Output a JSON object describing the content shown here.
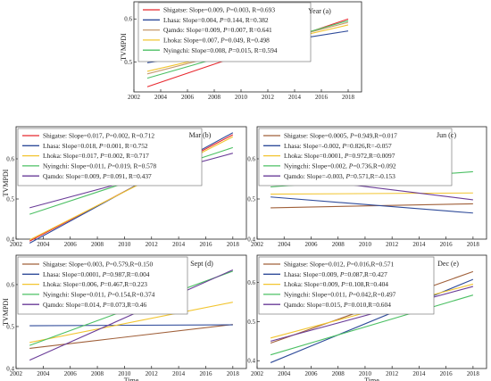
{
  "colors": {
    "Shigatse": "#e8292f",
    "Lhasa": "#2f4b9a",
    "Qamdo": "#c69a6e",
    "Lhoka": "#f2c530",
    "Nyingchi": "#4cc064",
    "Qamdo_purple": "#6a3c98",
    "Shigatse_brown": "#a0603a"
  },
  "chart_data": [
    {
      "type": "line",
      "title": "Year (a)",
      "ylabel": "TVMPDI",
      "xlabel": "",
      "xticks": [
        "2002",
        "2004",
        "2006",
        "2008",
        "2010",
        "2012",
        "2014",
        "2016",
        "2018"
      ],
      "yticks": [
        "0.5",
        "0.6"
      ],
      "xlim": [
        2002,
        2019
      ],
      "ylim": [
        0.43,
        0.64
      ],
      "legend": "top-left",
      "series": [
        {
          "name": "Shigatse",
          "label": [
            "Shigatse: Slope=0.009, ",
            "P",
            "=0.003, R=0.693"
          ],
          "color_key": "Shigatse",
          "x": [
            2003,
            2018
          ],
          "y": [
            0.442,
            0.6
          ]
        },
        {
          "name": "Lhasa",
          "label": [
            "Lhasa: Slope=0.004, ",
            "P",
            "=0.144, R=0.382"
          ],
          "color_key": "Lhasa",
          "x": [
            2003,
            2018
          ],
          "y": [
            0.498,
            0.572
          ]
        },
        {
          "name": "Qamdo",
          "label": [
            "Qamdo: Slope=0.009, ",
            "P",
            "=0.007, R=0.641"
          ],
          "color_key": "Qamdo",
          "x": [
            2003,
            2018
          ],
          "y": [
            0.472,
            0.592
          ]
        },
        {
          "name": "Lhoka",
          "label": [
            "Lhoka: Slope=0.007, ",
            "P",
            "=0.049, R=0.498"
          ],
          "color_key": "Lhoka",
          "x": [
            2003,
            2018
          ],
          "y": [
            0.478,
            0.586
          ]
        },
        {
          "name": "Nyingchi",
          "label": [
            "Nyingchi: Slope=0.008, ",
            "P",
            "=0.015, R=0.594"
          ],
          "color_key": "Nyingchi",
          "x": [
            2003,
            2018
          ],
          "y": [
            0.462,
            0.596
          ]
        }
      ]
    },
    {
      "type": "line",
      "title": "Mar (b)",
      "ylabel": "TVMPDI",
      "xlabel": "",
      "xticks": [
        "2002",
        "2004",
        "2006",
        "2008",
        "2010",
        "2012",
        "2014",
        "2016",
        "2018"
      ],
      "yticks": [
        "0.4",
        "0.5",
        "0.6"
      ],
      "xlim": [
        2002,
        2019
      ],
      "ylim": [
        0.4,
        0.68
      ],
      "legend": "top-left",
      "series": [
        {
          "name": "Shigatse",
          "label": [
            "Shigatse: Slope=0.017, ",
            "P",
            "=0.002, R=0.712"
          ],
          "color_key": "Shigatse",
          "x": [
            2003,
            2018
          ],
          "y": [
            0.395,
            0.66
          ]
        },
        {
          "name": "Lhasa",
          "label": [
            "Lhasa: Slope=0.018, ",
            "P",
            "=0.001, R=0.752"
          ],
          "color_key": "Lhasa",
          "x": [
            2003,
            2018
          ],
          "y": [
            0.39,
            0.665
          ]
        },
        {
          "name": "Lhoka",
          "label": [
            "Lhoka: Slope=0.017, ",
            "P",
            "=0.002, R=0.717"
          ],
          "color_key": "Lhoka",
          "x": [
            2003,
            2018
          ],
          "y": [
            0.398,
            0.655
          ]
        },
        {
          "name": "Nyingchi",
          "label": [
            "Nyingchi: Slope=0.011, ",
            "P",
            "=0.019, R=0.578"
          ],
          "color_key": "Nyingchi",
          "x": [
            2003,
            2018
          ],
          "y": [
            0.462,
            0.628
          ]
        },
        {
          "name": "Qamdo",
          "label": [
            "Qamdo: Slope=0.009, ",
            "P",
            "=0.091, R=0.437"
          ],
          "color_key": "Qamdo_purple",
          "x": [
            2003,
            2018
          ],
          "y": [
            0.478,
            0.614
          ]
        }
      ]
    },
    {
      "type": "line",
      "title": "Jun (c)",
      "ylabel": "",
      "xlabel": "",
      "xticks": [
        "2002",
        "2004",
        "2006",
        "2008",
        "2010",
        "2012",
        "2014",
        "2016",
        "2018"
      ],
      "yticks": [
        "0.4",
        "0.5",
        "0.6"
      ],
      "xlim": [
        2002,
        2019
      ],
      "ylim": [
        0.4,
        0.68
      ],
      "legend": "top-left",
      "series": [
        {
          "name": "Shigatse",
          "label": [
            "Shigatse: Slope=0.0005, ",
            "P",
            "=0.949,R=0.017"
          ],
          "color_key": "Shigatse_brown",
          "x": [
            2003,
            2018
          ],
          "y": [
            0.478,
            0.488
          ]
        },
        {
          "name": "Lhasa",
          "label": [
            "Lhasa: Slope=-0.002, ",
            "P",
            "=0.826,R=-0.057"
          ],
          "color_key": "Lhasa",
          "x": [
            2003,
            2018
          ],
          "y": [
            0.505,
            0.465
          ]
        },
        {
          "name": "Lhoka",
          "label": [
            "Lhoka: Slope=0.0001, ",
            "P",
            "=0.972,R=0.0097"
          ],
          "color_key": "Lhoka",
          "x": [
            2003,
            2018
          ],
          "y": [
            0.512,
            0.515
          ]
        },
        {
          "name": "Nyingchi",
          "label": [
            "Nyingchi: Slope=0.002, ",
            "P",
            "=0.736,R=0.092"
          ],
          "color_key": "Nyingchi",
          "x": [
            2003,
            2018
          ],
          "y": [
            0.53,
            0.568
          ]
        },
        {
          "name": "Qamdo",
          "label": [
            "Qamdo: Slope=-0.003, ",
            "P",
            "=0.571,R=-0.153"
          ],
          "color_key": "Qamdo_purple",
          "x": [
            2003,
            2018
          ],
          "y": [
            0.56,
            0.498
          ]
        }
      ]
    },
    {
      "type": "line",
      "title": "Sept (d)",
      "ylabel": "TVMPDI",
      "xlabel": "Time",
      "xticks": [
        "2002",
        "2004",
        "2006",
        "2008",
        "2010",
        "2012",
        "2014",
        "2016",
        "2018"
      ],
      "yticks": [
        "0.4",
        "0.5",
        "0.6"
      ],
      "xlim": [
        2002,
        2019
      ],
      "ylim": [
        0.4,
        0.67
      ],
      "legend": "top-left",
      "series": [
        {
          "name": "Shigatse",
          "label": [
            "Shigatse: Slope=0.003, ",
            "P",
            "=0.579,R=0.150"
          ],
          "color_key": "Shigatse_brown",
          "x": [
            2003,
            2018
          ],
          "y": [
            0.448,
            0.505
          ]
        },
        {
          "name": "Lhasa",
          "label": [
            "Lhasa: Slope=0.0001, ",
            "P",
            "=0.987,R=0.004"
          ],
          "color_key": "Lhasa",
          "x": [
            2003,
            2018
          ],
          "y": [
            0.502,
            0.504
          ]
        },
        {
          "name": "Lhoka",
          "label": [
            "Lhoka: Slope=0.006, ",
            "P",
            "=0.467,R=0.223"
          ],
          "color_key": "Lhoka",
          "x": [
            2003,
            2018
          ],
          "y": [
            0.462,
            0.558
          ]
        },
        {
          "name": "Nyingchi",
          "label": [
            "Nyingchi: Slope=0.011, ",
            "P",
            "=0.154,R=0.374"
          ],
          "color_key": "Nyingchi",
          "x": [
            2003,
            2018
          ],
          "y": [
            0.455,
            0.632
          ]
        },
        {
          "name": "Qamdo",
          "label": [
            "Qamdo: Slope=0.014, ",
            "P",
            "=0.073,R=0.46"
          ],
          "color_key": "Qamdo_purple",
          "x": [
            2003,
            2018
          ],
          "y": [
            0.42,
            0.635
          ]
        }
      ]
    },
    {
      "type": "line",
      "title": "Dec (e)",
      "ylabel": "",
      "xlabel": "Time",
      "xticks": [
        "2002",
        "2004",
        "2006",
        "2008",
        "2010",
        "2012",
        "2014",
        "2016",
        "2018"
      ],
      "yticks": [
        "0.4",
        "0.5",
        "0.6"
      ],
      "xlim": [
        2002,
        2019
      ],
      "ylim": [
        0.38,
        0.67
      ],
      "legend": "top-left",
      "series": [
        {
          "name": "Shigatse",
          "label": [
            "Shigatse: Slope=0.012, ",
            "P",
            "=0.016,R=0.571"
          ],
          "color_key": "Shigatse_brown",
          "x": [
            2003,
            2018
          ],
          "y": [
            0.445,
            0.628
          ]
        },
        {
          "name": "Lhasa",
          "label": [
            "Lhasa: Slope=0.009, ",
            "P",
            "=0.087,R=0.427"
          ],
          "color_key": "Lhasa",
          "x": [
            2003,
            2018
          ],
          "y": [
            0.395,
            0.608
          ]
        },
        {
          "name": "Lhoka",
          "label": [
            "Lhoka: Slope=0.009, ",
            "P",
            "=0.108,R=0.404"
          ],
          "color_key": "Lhoka",
          "x": [
            2003,
            2018
          ],
          "y": [
            0.458,
            0.596
          ]
        },
        {
          "name": "Nyingchi",
          "label": [
            "Nyingchi: Slope=0.011, ",
            "P",
            "=0.042,R=0.497"
          ],
          "color_key": "Nyingchi",
          "x": [
            2003,
            2018
          ],
          "y": [
            0.415,
            0.568
          ]
        },
        {
          "name": "Qamdo",
          "label": [
            "Qamdo: Slope=0.015, ",
            "P",
            "=0.010,R=0.604"
          ],
          "color_key": "Qamdo_purple",
          "x": [
            2003,
            2018
          ],
          "y": [
            0.45,
            0.59
          ]
        }
      ]
    }
  ]
}
